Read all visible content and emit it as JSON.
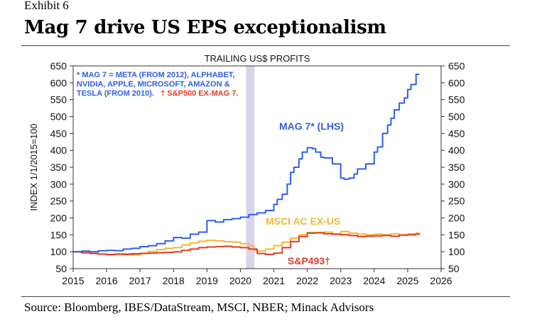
{
  "exhibit_label": "Exhibit 6",
  "headline": "Mag 7 drive US EPS exceptionalism",
  "source": "Source: Bloomberg, IBES/DataStream, MSCI, NBER; Minack Advisors",
  "chart_data": {
    "type": "line",
    "title": "TRAILING US$ PROFITS",
    "ylabel": "INDEX 1/1/2015=100",
    "xlim": [
      2015,
      2026
    ],
    "ylim": [
      50,
      650
    ],
    "x_ticks": [
      "2015",
      "2016",
      "2017",
      "2018",
      "2019",
      "2020",
      "2021",
      "2022",
      "2023",
      "2024",
      "2025",
      "2026"
    ],
    "y_ticks": [
      "50",
      "100",
      "150",
      "200",
      "250",
      "300",
      "350",
      "400",
      "450",
      "500",
      "550",
      "600",
      "650"
    ],
    "grid": false,
    "footnote_lines": [
      "* MAG 7 = META (FROM 2012), ALPHABET,",
      "NVIDIA, APPLE, MICROSOFT, AMAZON &",
      "TESLA (FROM 2010)."
    ],
    "footnote_red": "† S&P500 EX-MAG 7.",
    "recession_shading": {
      "from": 2020.17,
      "to": 2020.42,
      "color": "#d9d4e8"
    },
    "series": [
      {
        "name": "MAG 7* (LHS)",
        "color": "#2e5fe6",
        "label_color": "#2e5fe6",
        "x": [
          2015.0,
          2015.25,
          2015.5,
          2015.75,
          2016.0,
          2016.25,
          2016.5,
          2016.75,
          2017.0,
          2017.25,
          2017.5,
          2017.75,
          2018.0,
          2018.25,
          2018.5,
          2018.75,
          2019.0,
          2019.25,
          2019.5,
          2019.75,
          2020.0,
          2020.25,
          2020.5,
          2020.75,
          2021.0,
          2021.1,
          2021.25,
          2021.4,
          2021.5,
          2021.6,
          2021.75,
          2021.85,
          2022.0,
          2022.15,
          2022.25,
          2022.4,
          2022.5,
          2022.75,
          2023.0,
          2023.1,
          2023.25,
          2023.4,
          2023.5,
          2023.75,
          2024.0,
          2024.1,
          2024.25,
          2024.4,
          2024.5,
          2024.6,
          2024.75,
          2024.9,
          2025.0,
          2025.1,
          2025.25,
          2025.35
        ],
        "values": [
          100,
          102,
          100,
          103,
          104,
          103,
          108,
          110,
          115,
          118,
          124,
          132,
          142,
          140,
          152,
          158,
          192,
          188,
          195,
          198,
          202,
          210,
          215,
          222,
          240,
          255,
          270,
          300,
          335,
          350,
          375,
          395,
          408,
          405,
          395,
          380,
          378,
          360,
          318,
          315,
          318,
          330,
          345,
          360,
          395,
          410,
          450,
          475,
          495,
          520,
          540,
          555,
          580,
          595,
          625,
          625
        ]
      },
      {
        "name": "MSCI AC EX-US",
        "color": "#f2b830",
        "label_color": "#f2b830",
        "x": [
          2015.0,
          2015.25,
          2015.5,
          2015.75,
          2016.0,
          2016.25,
          2016.5,
          2016.75,
          2017.0,
          2017.25,
          2017.5,
          2017.75,
          2018.0,
          2018.25,
          2018.5,
          2018.75,
          2019.0,
          2019.25,
          2019.5,
          2019.75,
          2020.0,
          2020.25,
          2020.4,
          2020.5,
          2020.75,
          2021.0,
          2021.25,
          2021.5,
          2021.75,
          2022.0,
          2022.25,
          2022.5,
          2022.75,
          2023.0,
          2023.25,
          2023.5,
          2023.75,
          2024.0,
          2024.25,
          2024.5,
          2024.75,
          2025.0,
          2025.25,
          2025.35
        ],
        "values": [
          100,
          97,
          95,
          93,
          91,
          92,
          94,
          90,
          96,
          101,
          106,
          110,
          112,
          120,
          126,
          131,
          134,
          132,
          130,
          128,
          124,
          118,
          104,
          102,
          108,
          118,
          128,
          140,
          150,
          157,
          157,
          158,
          152,
          160,
          155,
          152,
          150,
          152,
          150,
          153,
          150,
          153,
          155,
          156
        ]
      },
      {
        "name": "S&P493†",
        "color": "#e23a2a",
        "label_color": "#e23a2a",
        "x": [
          2015.0,
          2015.25,
          2015.5,
          2015.75,
          2016.0,
          2016.25,
          2016.5,
          2016.75,
          2017.0,
          2017.25,
          2017.5,
          2017.75,
          2018.0,
          2018.25,
          2018.5,
          2018.75,
          2019.0,
          2019.25,
          2019.5,
          2019.75,
          2020.0,
          2020.25,
          2020.5,
          2020.75,
          2021.0,
          2021.25,
          2021.5,
          2021.75,
          2022.0,
          2022.25,
          2022.5,
          2022.75,
          2023.0,
          2023.25,
          2023.5,
          2023.75,
          2024.0,
          2024.25,
          2024.5,
          2024.75,
          2025.0,
          2025.25,
          2025.35
        ],
        "values": [
          100,
          97,
          95,
          93,
          92,
          93,
          92,
          94,
          95,
          96,
          97,
          98,
          100,
          104,
          108,
          112,
          114,
          115,
          116,
          114,
          112,
          108,
          95,
          92,
          96,
          112,
          130,
          145,
          155,
          156,
          153,
          152,
          150,
          148,
          145,
          146,
          147,
          148,
          146,
          149,
          150,
          152,
          154
        ]
      }
    ]
  }
}
